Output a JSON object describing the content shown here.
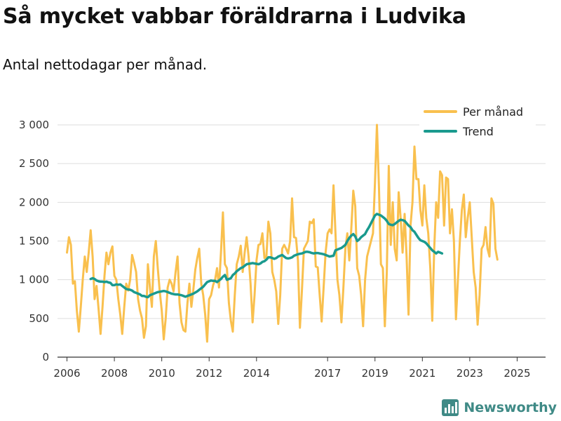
{
  "header": {
    "title": "Så mycket vabbar föräldrarna i Ludvika",
    "subtitle": "Antal nettodagar per månad."
  },
  "brand": {
    "name": "Newsworthy",
    "icon": "bar-chart-logo-icon",
    "color": "#3f8a86"
  },
  "chart_data": {
    "type": "line",
    "title": "Så mycket vabbar föräldrarna i Ludvika",
    "subtitle": "Antal nettodagar per månad.",
    "xlabel": "",
    "ylabel": "",
    "xlim": [
      2005.6,
      2026.2
    ],
    "ylim": [
      0,
      3000
    ],
    "yticks": [
      0,
      500,
      1000,
      1500,
      2000,
      2500,
      3000
    ],
    "ytick_labels": [
      "0",
      "500",
      "1 000",
      "1 500",
      "2 000",
      "2 500",
      "3 000"
    ],
    "xticks": [
      2006,
      2008,
      2010,
      2012,
      2014,
      2017,
      2019,
      2021,
      2023,
      2025
    ],
    "xtick_labels": [
      "2006",
      "2008",
      "2010",
      "2012",
      "2014",
      "2017",
      "2019",
      "2021",
      "2023",
      "2025"
    ],
    "grid": true,
    "legend_position": "top-right",
    "start": 2006.0,
    "step": 0.08333,
    "series": [
      {
        "name": "Per månad",
        "color": "#f9c04e",
        "values": [
          1350,
          1550,
          1450,
          950,
          980,
          600,
          330,
          650,
          1000,
          1300,
          1100,
          1350,
          1640,
          1300,
          750,
          920,
          620,
          300,
          650,
          1050,
          1350,
          1200,
          1350,
          1430,
          1050,
          1000,
          750,
          550,
          300,
          650,
          950,
          860,
          1000,
          1320,
          1220,
          1100,
          750,
          600,
          500,
          250,
          400,
          1200,
          900,
          650,
          1300,
          1500,
          1150,
          850,
          600,
          230,
          500,
          900,
          1000,
          950,
          850,
          1100,
          1300,
          700,
          450,
          350,
          330,
          700,
          950,
          650,
          870,
          1130,
          1280,
          1400,
          950,
          800,
          550,
          200,
          750,
          800,
          930,
          1000,
          1150,
          900,
          1350,
          1870,
          1200,
          1150,
          700,
          470,
          330,
          800,
          1200,
          1300,
          1440,
          1100,
          1350,
          1550,
          1300,
          950,
          450,
          800,
          1250,
          1450,
          1460,
          1600,
          1280,
          1300,
          1750,
          1600,
          1100,
          1000,
          850,
          430,
          800,
          1400,
          1450,
          1400,
          1340,
          1500,
          2050,
          1550,
          1540,
          1250,
          380,
          850,
          1400,
          1450,
          1500,
          1750,
          1730,
          1780,
          1170,
          1160,
          800,
          460,
          900,
          1350,
          1600,
          1650,
          1600,
          2220,
          1600,
          1000,
          800,
          450,
          900,
          1400,
          1600,
          1250,
          1650,
          2150,
          1950,
          1150,
          1050,
          800,
          400,
          1000,
          1300,
          1400,
          1500,
          1600,
          2250,
          3000,
          2200,
          1200,
          1150,
          400,
          1100,
          2470,
          1450,
          2000,
          1400,
          1250,
          2130,
          1800,
          1350,
          1850,
          1300,
          550,
          1700,
          2000,
          2720,
          2300,
          2300,
          1900,
          1700,
          2220,
          1800,
          1600,
          1150,
          470,
          1400,
          2000,
          1800,
          2400,
          2350,
          1700,
          2320,
          2300,
          1600,
          1910,
          1500,
          490,
          1000,
          1500,
          1900,
          2100,
          1550,
          1800,
          2000,
          1550,
          1100,
          900,
          420,
          800,
          1400,
          1450,
          1680,
          1400,
          1300,
          2050,
          1980,
          1400,
          1260
        ]
      },
      {
        "name": "Trend",
        "color": "#1a9a8e",
        "values": [
          1010,
          1020,
          1010,
          990,
          980,
          975,
          975,
          970,
          975,
          965,
          960,
          930,
          930,
          940,
          935,
          940,
          920,
          900,
          880,
          875,
          870,
          860,
          840,
          830,
          820,
          810,
          790,
          790,
          780,
          775,
          800,
          810,
          820,
          830,
          840,
          845,
          850,
          855,
          850,
          840,
          830,
          820,
          815,
          810,
          810,
          805,
          800,
          790,
          780,
          790,
          800,
          810,
          820,
          835,
          850,
          870,
          890,
          910,
          940,
          970,
          980,
          990,
          985,
          985,
          970,
          990,
          1010,
          1040,
          1060,
          1000,
          1010,
          1020,
          1060,
          1080,
          1110,
          1130,
          1150,
          1160,
          1180,
          1200,
          1205,
          1210,
          1215,
          1210,
          1205,
          1200,
          1210,
          1230,
          1240,
          1260,
          1290,
          1290,
          1280,
          1270,
          1280,
          1300,
          1310,
          1320,
          1300,
          1280,
          1275,
          1280,
          1290,
          1310,
          1320,
          1330,
          1335,
          1340,
          1350,
          1360,
          1360,
          1355,
          1345,
          1340,
          1345,
          1345,
          1340,
          1335,
          1330,
          1320,
          1310,
          1300,
          1305,
          1310,
          1380,
          1390,
          1400,
          1410,
          1430,
          1450,
          1500,
          1540,
          1570,
          1590,
          1560,
          1500,
          1520,
          1550,
          1570,
          1590,
          1640,
          1680,
          1730,
          1780,
          1830,
          1850,
          1840,
          1830,
          1810,
          1790,
          1760,
          1720,
          1710,
          1705,
          1720,
          1740,
          1760,
          1775,
          1770,
          1760,
          1730,
          1700,
          1680,
          1640,
          1620,
          1580,
          1540,
          1510,
          1500,
          1490,
          1470,
          1440,
          1410,
          1380,
          1360,
          1340,
          1360,
          1350,
          1340
        ]
      }
    ]
  }
}
